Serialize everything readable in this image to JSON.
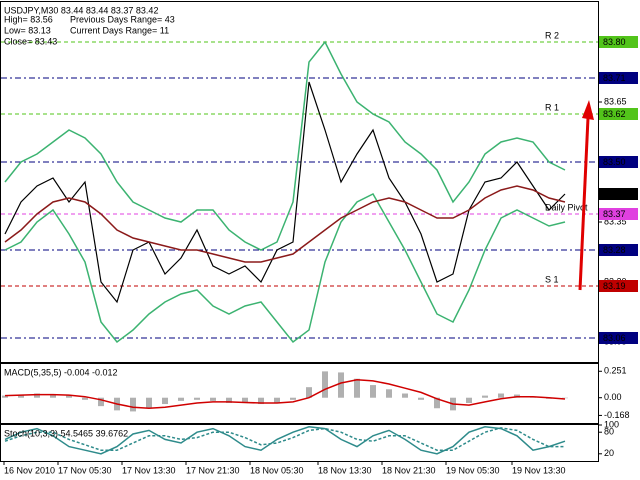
{
  "chart_data": [
    {
      "type": "line",
      "title": "USDJPY,M30 83.44 83.44 83.37 83.42",
      "info": [
        "High= 83.56",
        "Previous Days Range= 43",
        "Low= 83.13",
        "Current Days Range= 11",
        "Close= 83.43"
      ],
      "xtick_labels": [
        "16 Nov 2010",
        "17 Nov 05:30",
        "17 Nov 13:30",
        "17 Nov 21:30",
        "18 Nov 05:30",
        "18 Nov 13:30",
        "18 Nov 21:30",
        "19 Nov 05:30",
        "19 Nov 13:30"
      ],
      "ylim": [
        83.0,
        83.9
      ],
      "yticks": [
        {
          "value": 83.8,
          "label": "83.80"
        },
        83.65,
        {
          "value": 83.5,
          "label": "83.50"
        },
        83.35,
        {
          "value": 83.2,
          "label": "83.20"
        },
        83.05
      ],
      "levels": [
        {
          "value": 83.8,
          "label": "83.80",
          "color": "#52c41a",
          "line_style": "dash"
        },
        {
          "value": 83.71,
          "label": "83.71",
          "color": "#00007f",
          "line_style": "dash-dot"
        },
        {
          "value": 83.62,
          "label": "83.62",
          "color": "#52c41a",
          "line_style": "dash"
        },
        {
          "value": 83.5,
          "label": "83.50",
          "color": "#00007f",
          "line_style": "dash-dot"
        },
        {
          "value": 83.42,
          "label": "83.42",
          "color": "#000000",
          "line_style": "none"
        },
        {
          "value": 83.37,
          "label": "83.37",
          "color": "#e040e0",
          "line_style": "dash"
        },
        {
          "value": 83.28,
          "label": "83.28",
          "color": "#00007f",
          "line_style": "dash-dot"
        },
        {
          "value": 83.19,
          "label": "83.19",
          "color": "#c00000",
          "line_style": "dash"
        },
        {
          "value": 83.06,
          "label": "83.06",
          "color": "#00007f",
          "line_style": "dash-dot"
        }
      ],
      "level_labels": [
        {
          "value": 83.8,
          "label": "R 2",
          "color": "#e0a030"
        },
        {
          "value": 83.62,
          "label": "R 1",
          "color": "#e0a030"
        },
        {
          "value": 83.37,
          "label": "Daily Pivot",
          "color": "#e0a030"
        },
        {
          "value": 83.19,
          "label": "S 1",
          "color": "#e0a030"
        }
      ],
      "series": [
        {
          "kind": "line",
          "color": "#000000",
          "values": [
            83.32,
            83.4,
            83.44,
            83.46,
            83.4,
            83.45,
            83.2,
            83.15,
            83.28,
            83.3,
            83.22,
            83.26,
            83.33,
            83.24,
            83.22,
            83.24,
            83.2,
            83.28,
            83.3,
            83.7,
            83.58,
            83.45,
            83.52,
            83.58,
            83.46,
            83.4,
            83.32,
            83.2,
            83.22,
            83.38,
            83.45,
            83.46,
            83.5,
            83.44,
            83.38,
            83.42
          ]
        },
        {
          "kind": "line",
          "color": "#3cb371",
          "values": [
            83.45,
            83.5,
            83.52,
            83.55,
            83.58,
            83.56,
            83.52,
            83.45,
            83.4,
            83.38,
            83.36,
            83.35,
            83.38,
            83.38,
            83.33,
            83.3,
            83.28,
            83.3,
            83.4,
            83.75,
            83.8,
            83.72,
            83.65,
            83.62,
            83.6,
            83.55,
            83.52,
            83.48,
            83.4,
            83.45,
            83.52,
            83.55,
            83.56,
            83.55,
            83.5,
            83.48
          ]
        },
        {
          "kind": "line",
          "color": "#3cb371",
          "values": [
            83.28,
            83.3,
            83.35,
            83.38,
            83.32,
            83.25,
            83.1,
            83.05,
            83.08,
            83.12,
            83.15,
            83.17,
            83.18,
            83.14,
            83.12,
            83.14,
            83.15,
            83.1,
            83.05,
            83.08,
            83.25,
            83.35,
            83.4,
            83.42,
            83.35,
            83.28,
            83.2,
            83.12,
            83.1,
            83.18,
            83.28,
            83.36,
            83.38,
            83.36,
            83.34,
            83.35
          ]
        },
        {
          "kind": "line",
          "color": "#8b1a1a",
          "values": [
            83.3,
            83.33,
            83.37,
            83.4,
            83.41,
            83.4,
            83.37,
            83.33,
            83.31,
            83.3,
            83.29,
            83.28,
            83.28,
            83.27,
            83.26,
            83.25,
            83.25,
            83.26,
            83.27,
            83.3,
            83.33,
            83.36,
            83.38,
            83.4,
            83.41,
            83.4,
            83.38,
            83.36,
            83.36,
            83.38,
            83.41,
            83.43,
            83.44,
            83.43,
            83.41,
            83.4
          ]
        }
      ]
    },
    {
      "type": "macd",
      "title": "MACD(5,35,5) -0.004 -0.012",
      "ylim": [
        -0.24,
        0.32
      ],
      "yticks": [
        0.251,
        {
          "value": 0,
          "label": "0.00"
        },
        -0.168
      ],
      "series": [
        {
          "kind": "bar",
          "color": "#b0b0b0",
          "values": [
            0.02,
            0.03,
            0.04,
            0.03,
            0.02,
            -0.02,
            -0.08,
            -0.12,
            -0.13,
            -0.1,
            -0.06,
            -0.03,
            -0.02,
            -0.03,
            -0.05,
            -0.05,
            -0.06,
            -0.05,
            -0.02,
            0.1,
            0.25,
            0.24,
            0.18,
            0.12,
            0.08,
            0.04,
            -0.02,
            -0.1,
            -0.12,
            -0.05,
            0.02,
            0.04,
            0.03,
            0.01,
            -0.01,
            -0.004
          ]
        },
        {
          "kind": "line",
          "color": "#d00000",
          "values": [
            0.02,
            0.025,
            0.03,
            0.03,
            0.025,
            0.01,
            -0.02,
            -0.06,
            -0.09,
            -0.1,
            -0.09,
            -0.07,
            -0.05,
            -0.04,
            -0.04,
            -0.045,
            -0.05,
            -0.05,
            -0.04,
            0.0,
            0.08,
            0.14,
            0.17,
            0.16,
            0.13,
            0.09,
            0.05,
            -0.01,
            -0.06,
            -0.07,
            -0.04,
            -0.01,
            0.01,
            0.01,
            0.0,
            -0.012
          ]
        }
      ]
    },
    {
      "type": "line",
      "title": "Stoch(10,3,3) 54.5465 39.6762",
      "ylim": [
        0,
        100
      ],
      "yticks": [
        100,
        80,
        20
      ],
      "series": [
        {
          "kind": "line",
          "color": "#2e8b8b",
          "values": [
            60,
            80,
            90,
            70,
            40,
            30,
            20,
            40,
            75,
            85,
            60,
            50,
            80,
            90,
            70,
            40,
            30,
            60,
            80,
            95,
            90,
            60,
            40,
            70,
            85,
            60,
            30,
            20,
            40,
            80,
            95,
            90,
            70,
            30,
            40,
            55
          ]
        },
        {
          "kind": "line",
          "color": "#2e8b8b",
          "dashed": true,
          "values": [
            55,
            70,
            80,
            80,
            60,
            45,
            30,
            30,
            50,
            70,
            70,
            60,
            65,
            80,
            80,
            65,
            45,
            50,
            65,
            85,
            90,
            80,
            60,
            55,
            70,
            70,
            50,
            30,
            30,
            55,
            80,
            92,
            85,
            60,
            40,
            40
          ]
        }
      ]
    }
  ]
}
